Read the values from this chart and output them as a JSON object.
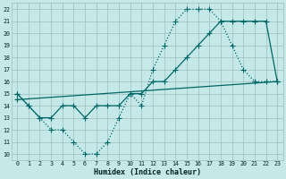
{
  "background_color": "#c5e8e8",
  "grid_color": "#9bbfbf",
  "line_color": "#006666",
  "xlim": [
    -0.5,
    23.5
  ],
  "ylim": [
    9.5,
    22.5
  ],
  "xticks": [
    0,
    1,
    2,
    3,
    4,
    5,
    6,
    7,
    8,
    9,
    10,
    11,
    12,
    13,
    14,
    15,
    16,
    17,
    18,
    19,
    20,
    21,
    22,
    23
  ],
  "yticks": [
    10,
    11,
    12,
    13,
    14,
    15,
    16,
    17,
    18,
    19,
    20,
    21,
    22
  ],
  "xlabel": "Humidex (Indice chaleur)",
  "line1_x": [
    0,
    1,
    2,
    3,
    4,
    5,
    6,
    7,
    8,
    9,
    10,
    11,
    12,
    13,
    14,
    15,
    16,
    17,
    18,
    19,
    20,
    21,
    22,
    23
  ],
  "line1_y": [
    15,
    14,
    13,
    12,
    12,
    11,
    10,
    10,
    11,
    13,
    15,
    14,
    17,
    19,
    21,
    22,
    22,
    22,
    21,
    19,
    17,
    16,
    16,
    16
  ],
  "line2_x": [
    0,
    1,
    2,
    3,
    4,
    5,
    6,
    7,
    8,
    9,
    10,
    11,
    12,
    13,
    14,
    15,
    16,
    17,
    18,
    19,
    20,
    21,
    22,
    23
  ],
  "line2_y": [
    15,
    14,
    13,
    13,
    14,
    14,
    13,
    14,
    14,
    14,
    15,
    15,
    16,
    16,
    17,
    18,
    19,
    20,
    21,
    21,
    21,
    21,
    21,
    16
  ],
  "line3_x": [
    0,
    23
  ],
  "line3_y": [
    14.5,
    16
  ],
  "marker_size": 2.0,
  "line_width": 0.9
}
